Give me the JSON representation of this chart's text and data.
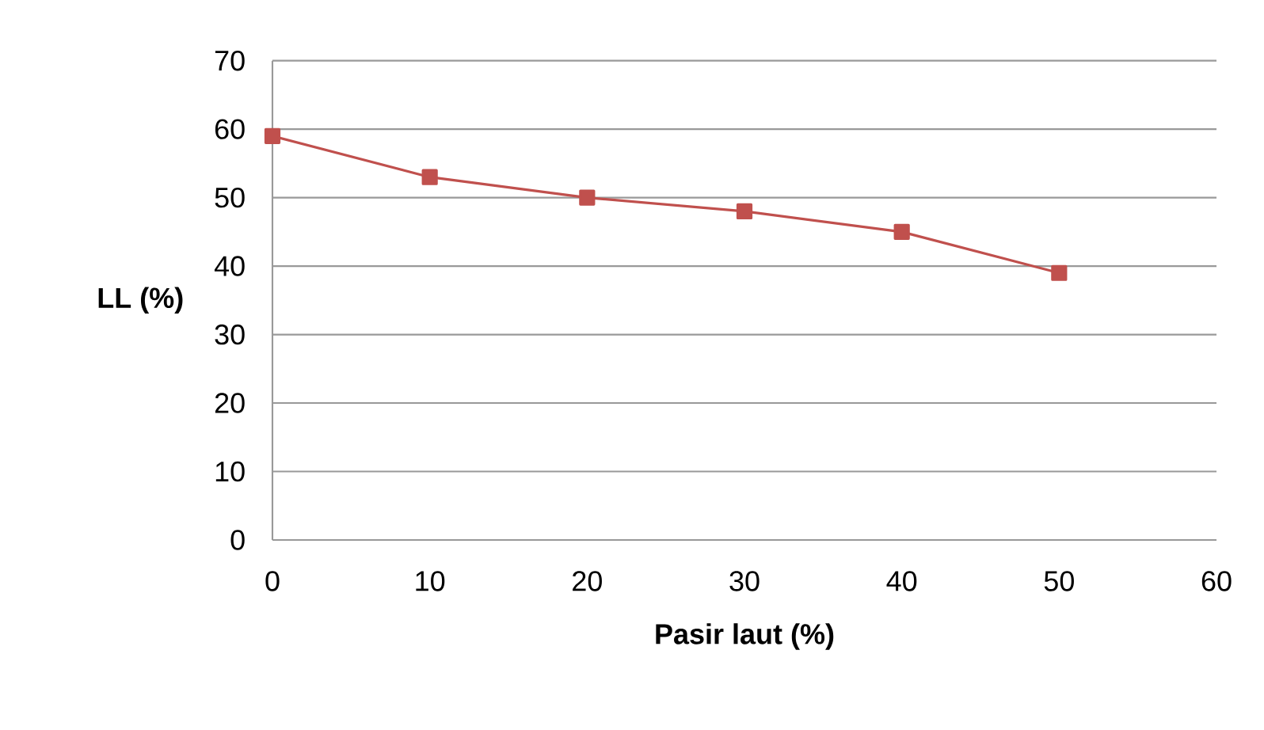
{
  "chart_data": {
    "type": "line",
    "xlabel": "Pasir laut  (%)",
    "ylabel": "LL (%)",
    "x": [
      0,
      10,
      20,
      30,
      40,
      50
    ],
    "series": [
      {
        "color": "#c0504d",
        "values": [
          59,
          53,
          50,
          48,
          45,
          39
        ]
      }
    ],
    "xlim": [
      0,
      60
    ],
    "ylim": [
      0,
      70
    ],
    "xticks": [
      0,
      10,
      20,
      30,
      40,
      50,
      60
    ],
    "yticks": [
      0,
      10,
      20,
      30,
      40,
      50,
      60,
      70
    ],
    "grid": "y",
    "marker": "square",
    "line_style": "solid"
  }
}
